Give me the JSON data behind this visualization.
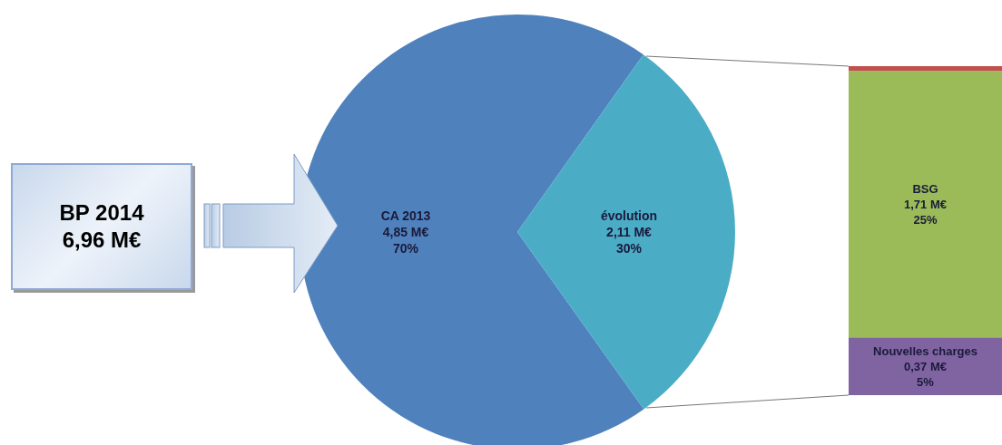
{
  "chart_data": [
    {
      "type": "pie",
      "categories": [
        "CA 2013",
        "évolution"
      ],
      "values": [
        4.85,
        2.11
      ],
      "colors": [
        "#4f81bd",
        "#4bacc6"
      ],
      "value_labels": [
        "4,85 M€\n70%",
        "2,11 M€\n30%"
      ],
      "annotations": [
        "BP 2014\n6,96 M€"
      ]
    },
    {
      "type": "bar",
      "stacked": true,
      "categories": [
        null
      ],
      "series": [
        {
          "name": "Nouvelles charges",
          "color": "#8064a2",
          "values": [
            0.37
          ],
          "value_labels": [
            "0,37 M€\n5%"
          ]
        },
        {
          "name": "BSG",
          "color": "#9bbb59",
          "values": [
            1.71
          ],
          "value_labels": [
            "1,71 M€\n25%"
          ]
        },
        {
          "color": "#c0504d",
          "values": [
            0.03
          ],
          "value_labels": [
            null
          ]
        }
      ]
    }
  ]
}
